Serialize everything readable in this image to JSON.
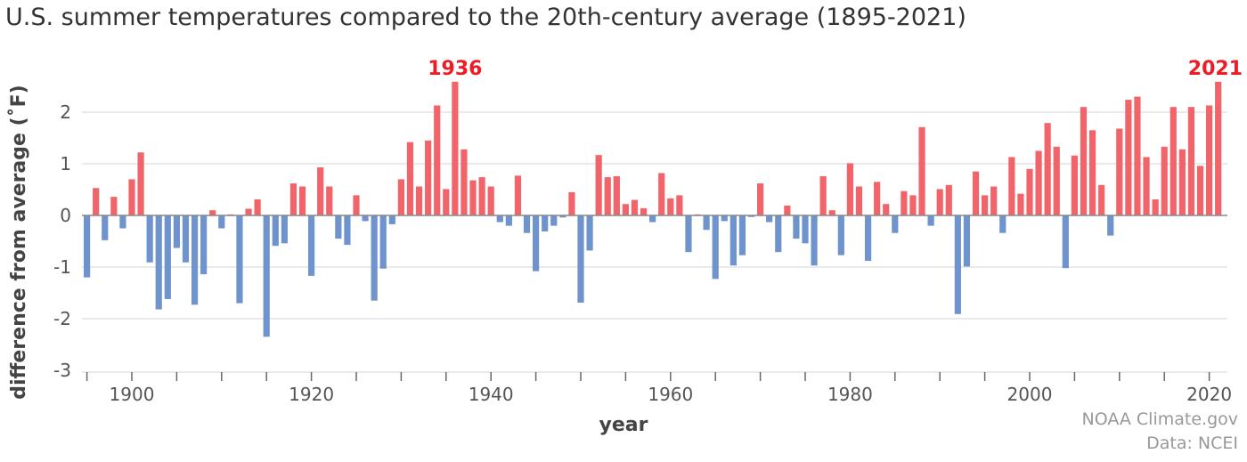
{
  "chart_data": {
    "type": "bar",
    "title": "U.S. summer temperatures compared to the 20th-century average (1895-2021)",
    "xlabel": "year",
    "ylabel": "difference from average (˚F)",
    "ylim": [
      -3,
      2.6
    ],
    "yticks": [
      -3,
      -2,
      -1,
      0,
      1,
      2
    ],
    "xticks": [
      1900,
      1920,
      1940,
      1960,
      1980,
      2000,
      2020
    ],
    "grid": true,
    "colors": {
      "positive": "#f0646a",
      "negative": "#6f93cc",
      "highlight_label": "#ee1c25"
    },
    "annotations": [
      {
        "year": 1936,
        "text": "1936"
      },
      {
        "year": 2021,
        "text": "2021"
      }
    ],
    "start_year": 1895,
    "values": [
      -1.2,
      0.53,
      -0.48,
      0.36,
      -0.25,
      0.7,
      1.22,
      -0.91,
      -1.82,
      -1.62,
      -0.63,
      -0.91,
      -1.73,
      -1.14,
      0.1,
      -0.25,
      0.02,
      -1.7,
      0.13,
      0.31,
      -2.35,
      -0.59,
      -0.54,
      0.62,
      0.56,
      -1.17,
      0.93,
      0.56,
      -0.45,
      -0.57,
      0.39,
      -0.11,
      -1.65,
      -1.03,
      -0.17,
      0.7,
      1.42,
      0.56,
      1.45,
      2.13,
      0.51,
      2.59,
      1.28,
      0.68,
      0.74,
      0.56,
      -0.13,
      -0.2,
      0.77,
      -0.34,
      -1.08,
      -0.31,
      -0.2,
      -0.04,
      0.45,
      -1.69,
      -0.68,
      1.17,
      0.74,
      0.76,
      0.22,
      0.3,
      0.14,
      -0.13,
      0.82,
      0.33,
      0.39,
      -0.71,
      0.02,
      -0.28,
      -1.23,
      -0.11,
      -0.97,
      -0.77,
      -0.03,
      0.62,
      -0.13,
      -0.71,
      0.19,
      -0.45,
      -0.54,
      -0.97,
      0.76,
      0.1,
      -0.77,
      1.01,
      0.56,
      -0.88,
      0.65,
      0.22,
      -0.34,
      0.47,
      0.39,
      1.71,
      -0.2,
      0.51,
      0.59,
      -1.91,
      -0.99,
      0.85,
      0.39,
      0.56,
      -0.34,
      1.13,
      0.42,
      0.9,
      1.25,
      1.79,
      1.33,
      -1.02,
      1.16,
      2.1,
      1.65,
      0.59,
      -0.39,
      1.68,
      2.24,
      2.3,
      1.13,
      0.31,
      1.33,
      2.1,
      1.28,
      2.1,
      0.96,
      2.13,
      2.59
    ]
  },
  "credits": {
    "line1": "NOAA Climate.gov",
    "line2": "Data: NCEI"
  }
}
